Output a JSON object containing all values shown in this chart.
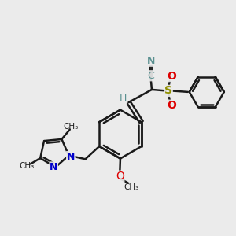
{
  "bg_color": "#ebebeb",
  "bond_color": "#1a1a1a",
  "bond_width": 1.8,
  "figsize": [
    3.0,
    3.0
  ],
  "dpi": 100,
  "teal": "#5a9090",
  "blue": "#0000cc",
  "red": "#dd0000",
  "yellow": "#909000",
  "xlim": [
    0,
    10
  ],
  "ylim": [
    0,
    10
  ]
}
